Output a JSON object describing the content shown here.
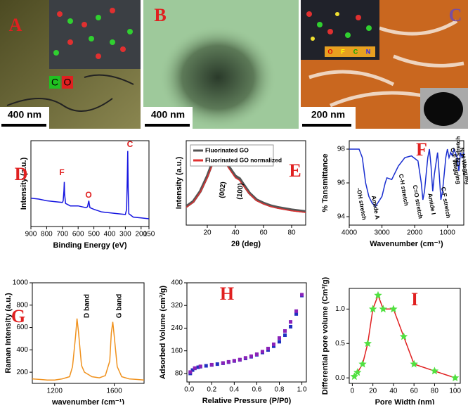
{
  "images": [
    {
      "label": "A",
      "scale_bar": "400 nm",
      "inset_labels": [
        "C",
        "O"
      ]
    },
    {
      "label": "B",
      "scale_bar": "400 nm"
    },
    {
      "label": "C",
      "scale_bar": "200 nm",
      "inset_labels": [
        "O",
        "F",
        "C",
        "N"
      ]
    }
  ],
  "chart_data": [
    {
      "type": "line",
      "panel": "D",
      "x_label": "Binding Energy (eV)",
      "y_label": "Intensity (a.u.)",
      "xlim": [
        900,
        150
      ],
      "xticks": [
        900,
        800,
        700,
        600,
        500,
        400,
        300,
        200,
        150
      ],
      "ylim": [
        0,
        100
      ],
      "x": [
        900,
        850,
        800,
        750,
        700,
        695,
        690,
        688,
        686,
        680,
        650,
        600,
        550,
        540,
        535,
        532,
        529,
        525,
        500,
        450,
        400,
        350,
        300,
        292,
        288,
        285,
        282,
        278,
        250,
        200,
        150
      ],
      "series": [
        {
          "color": "#1515e0",
          "values": [
            33,
            32,
            30,
            29,
            28,
            30,
            42,
            52,
            38,
            27,
            24,
            24,
            22,
            23,
            28,
            30,
            26,
            22,
            20,
            17,
            16,
            15,
            14,
            20,
            55,
            88,
            45,
            15,
            11,
            10,
            9
          ]
        }
      ],
      "annotations": [
        "F",
        "O",
        "C"
      ],
      "annotation_color": "#e02020"
    },
    {
      "type": "line",
      "panel": "E",
      "x_label": "2θ (deg)",
      "y_label": "Intensity (a.u.)",
      "xlim": [
        5,
        90
      ],
      "xticks": [
        20,
        40,
        60,
        80
      ],
      "ylim": [
        0,
        100
      ],
      "x": [
        5,
        10,
        15,
        20,
        25,
        28,
        30,
        35,
        40,
        43,
        45,
        50,
        55,
        60,
        65,
        70,
        80,
        90
      ],
      "series": [
        {
          "name": "Fluorinated GO",
          "color": "#555555",
          "values": [
            22,
            28,
            40,
            58,
            80,
            88,
            84,
            70,
            58,
            55,
            50,
            38,
            30,
            26,
            23,
            21,
            18,
            16
          ]
        },
        {
          "name": "Fluorinated GO normalized",
          "color": "#e03030",
          "values": [
            21,
            27,
            39,
            56,
            78,
            86,
            82,
            68,
            56,
            53,
            48,
            37,
            29,
            25,
            22,
            20,
            17,
            15
          ]
        }
      ],
      "annotations": [
        "(002)",
        "(100)"
      ],
      "annotation_color": "#000000",
      "legend": "upper left"
    },
    {
      "type": "line",
      "panel": "F",
      "x_label": "Wavenumber (cm⁻¹)",
      "y_label": "% Tansmittance",
      "xlim": [
        4000,
        500
      ],
      "xticks": [
        4000,
        3000,
        2000,
        1000
      ],
      "ylim": [
        93.5,
        98.5
      ],
      "yticks": [
        94,
        96,
        98
      ],
      "x": [
        4000,
        3700,
        3600,
        3500,
        3400,
        3300,
        3200,
        3000,
        2900,
        2850,
        2700,
        2500,
        2300,
        2100,
        1900,
        1800,
        1750,
        1700,
        1650,
        1600,
        1550,
        1500,
        1450,
        1400,
        1300,
        1250,
        1200,
        1150,
        1100,
        1050,
        1000,
        950,
        900,
        850,
        800,
        700,
        650,
        600,
        550,
        500
      ],
      "series": [
        {
          "color": "#1a2fd0",
          "values": [
            98,
            98,
            97.5,
            96,
            95.2,
            94.8,
            94.6,
            95.2,
            96,
            96.3,
            96.2,
            97,
            97.5,
            97.6,
            97.3,
            96,
            95,
            95.5,
            96.5,
            97.5,
            98,
            97,
            95.5,
            96.5,
            97.8,
            96.5,
            95,
            95.5,
            96.5,
            97.5,
            98,
            97.5,
            97.8,
            97.6,
            98,
            97.5,
            96.7,
            97.8,
            97.5,
            97.8
          ]
        }
      ],
      "annotations": [
        "-OH stretch",
        "Amide A",
        "C-H stretch",
        "C=O stretch",
        "Amide I",
        "C-F stretch",
        "CN stretch",
        "C-F Wagging",
        "N-H Wagging"
      ],
      "annotation_color": "#000000"
    },
    {
      "type": "line",
      "panel": "G",
      "x_label": "wavenumber (cm⁻¹)",
      "y_label": "Raman Intensity (a.u.)",
      "xlim": [
        1050,
        1800
      ],
      "xticks": [
        1200,
        1600
      ],
      "ylim": [
        100,
        1000
      ],
      "yticks": [
        200,
        400,
        600,
        800,
        1000
      ],
      "x": [
        1050,
        1100,
        1150,
        1200,
        1250,
        1300,
        1320,
        1340,
        1350,
        1360,
        1380,
        1400,
        1450,
        1500,
        1540,
        1570,
        1580,
        1590,
        1600,
        1620,
        1650,
        1700,
        1750,
        1800
      ],
      "series": [
        {
          "color": "#f0921e",
          "values": [
            140,
            135,
            130,
            130,
            140,
            160,
            250,
            520,
            680,
            560,
            260,
            200,
            160,
            150,
            170,
            300,
            550,
            650,
            520,
            250,
            160,
            140,
            135,
            130
          ]
        }
      ],
      "annotations": [
        "D band",
        "G band"
      ],
      "annotation_color": "#000000"
    },
    {
      "type": "scatter",
      "panel": "H",
      "x_label": "Relative Pressure (P/P0)",
      "y_label": "Adsorbed Volume (cm³/g)",
      "xlim": [
        -0.02,
        1.04
      ],
      "xticks": [
        {
          "value": 0,
          "label": "0.0"
        },
        0.2,
        0.4,
        0.6,
        0.8,
        {
          "value": 1,
          "label": "1.0"
        }
      ],
      "ylim": [
        50,
        400
      ],
      "yticks": [
        80,
        160,
        240,
        320,
        400
      ],
      "series": [
        {
          "color": "#2030c0",
          "x": [
            0.01,
            0.03,
            0.05,
            0.08,
            0.1,
            0.15,
            0.2,
            0.25,
            0.3,
            0.35,
            0.4,
            0.45,
            0.5,
            0.55,
            0.6,
            0.65,
            0.7,
            0.75,
            0.8,
            0.85,
            0.9,
            0.95,
            1.0
          ],
          "values": [
            80,
            92,
            98,
            102,
            104,
            107,
            110,
            113,
            116,
            120,
            124,
            128,
            133,
            139,
            146,
            154,
            163,
            176,
            192,
            215,
            245,
            290,
            355
          ]
        },
        {
          "color": "#8a22b8",
          "x": [
            1.0,
            0.95,
            0.9,
            0.85,
            0.8,
            0.75,
            0.7,
            0.65,
            0.6,
            0.55,
            0.5,
            0.45,
            0.4,
            0.35,
            0.3,
            0.2,
            0.1,
            0.05,
            0.01
          ],
          "values": [
            358,
            300,
            262,
            230,
            205,
            183,
            168,
            157,
            148,
            141,
            135,
            129,
            125,
            121,
            117,
            111,
            105,
            99,
            85
          ]
        }
      ]
    },
    {
      "type": "line",
      "panel": "I",
      "x_label": "Pore Width (nm)",
      "y_label": "Differential pore volume (Cm³/g)",
      "xlim": [
        -3,
        105
      ],
      "xticks": [
        0,
        20,
        40,
        60,
        80,
        100
      ],
      "ylim": [
        -0.08,
        1.3
      ],
      "yticks": [
        {
          "value": 0,
          "label": "0.0"
        },
        0.5,
        {
          "value": 1,
          "label": "1.0"
        }
      ],
      "x": [
        2,
        5,
        10,
        15,
        20,
        25,
        30,
        40,
        50,
        60,
        80,
        100
      ],
      "series": [
        {
          "color": "#e02020",
          "marker": "star",
          "marker_color": "#50e040",
          "values": [
            0.02,
            0.08,
            0.2,
            0.5,
            1.0,
            1.2,
            1.0,
            1.0,
            0.6,
            0.2,
            0.1,
            0.0
          ]
        }
      ]
    }
  ]
}
